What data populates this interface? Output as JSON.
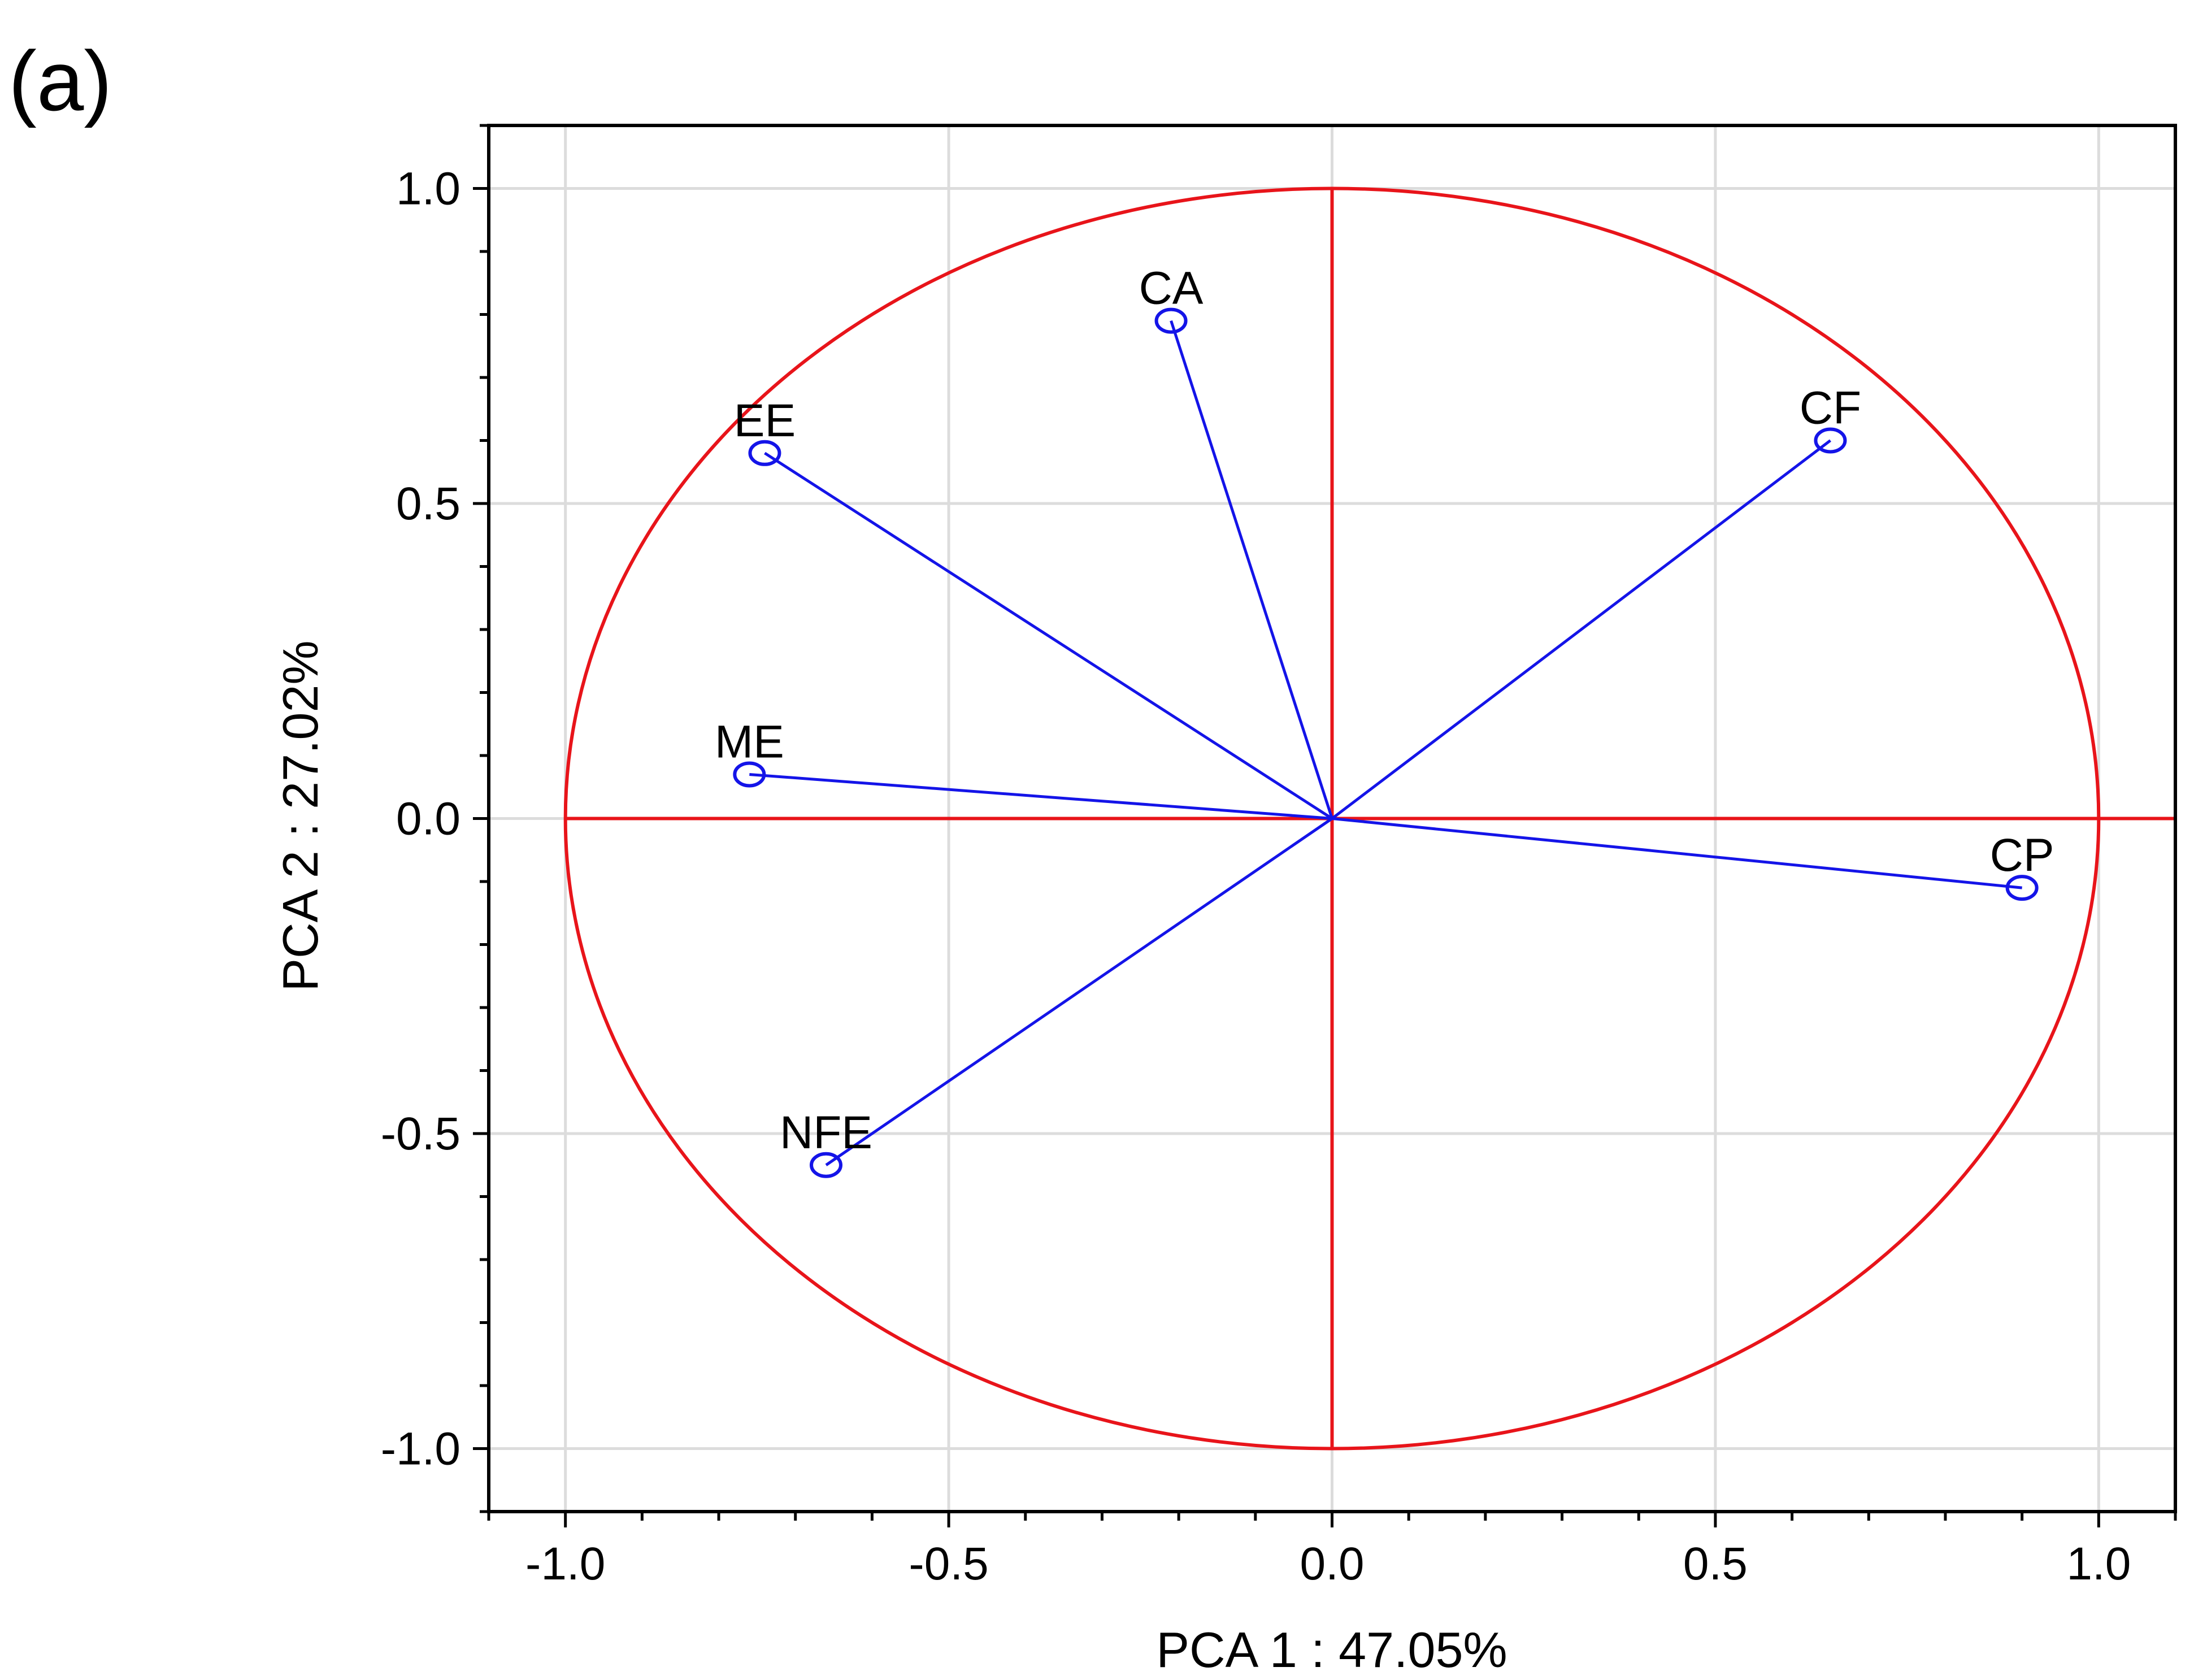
{
  "panel_label": "(a)",
  "colors": {
    "circle": "#e8141a",
    "vector": "#1414e8",
    "grid": "#dcdcdc",
    "axis": "#000000"
  },
  "chart_data": {
    "type": "scatter",
    "subtype": "pca-correlation-circle",
    "title": "",
    "xlabel": "PCA 1 : 47.05%",
    "ylabel": "PCA 2 : 27.02%",
    "xlim": [
      -1.1,
      1.1
    ],
    "ylim": [
      -1.1,
      1.1
    ],
    "xticks": [
      {
        "value": -1.0,
        "label": "-1.0"
      },
      {
        "value": -0.5,
        "label": "-0.5"
      },
      {
        "value": 0.0,
        "label": "0.0"
      },
      {
        "value": 0.5,
        "label": "0.5"
      },
      {
        "value": 1.0,
        "label": "1.0"
      }
    ],
    "yticks": [
      {
        "value": 1.0,
        "label": "1.0"
      },
      {
        "value": 0.5,
        "label": "0.5"
      },
      {
        "value": 0.0,
        "label": "0.0"
      },
      {
        "value": -0.5,
        "label": "-0.5"
      },
      {
        "value": -1.0,
        "label": "-1.0"
      }
    ],
    "grid": true,
    "unit_circle": true,
    "points": [
      {
        "label": "CA",
        "x": -0.21,
        "y": 0.79
      },
      {
        "label": "EE",
        "x": -0.74,
        "y": 0.58
      },
      {
        "label": "CF",
        "x": 0.65,
        "y": 0.6
      },
      {
        "label": "ME",
        "x": -0.76,
        "y": 0.07
      },
      {
        "label": "CP",
        "x": 0.9,
        "y": -0.11
      },
      {
        "label": "NFE",
        "x": -0.66,
        "y": -0.55
      }
    ]
  }
}
